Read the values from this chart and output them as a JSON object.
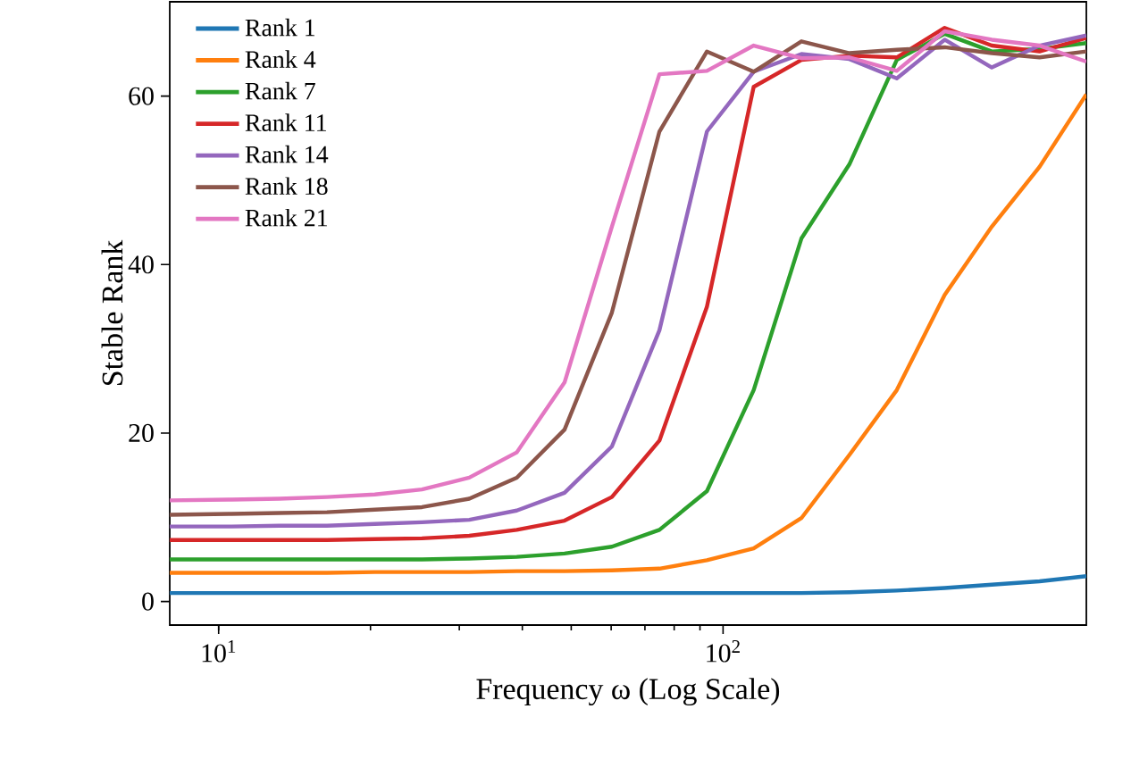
{
  "chart_data": {
    "type": "line",
    "xlabel": "Frequency ω (Log Scale)",
    "ylabel": "Stable Rank",
    "x": [
      8,
      10.6,
      13.2,
      16.4,
      20.4,
      25.3,
      31.4,
      39.0,
      48.5,
      60.2,
      74.8,
      92.9,
      115,
      143,
      178,
      221,
      275,
      341,
      424,
      525
    ],
    "series": [
      {
        "name": "Rank 1",
        "color": "#1f77b4",
        "values": [
          1.0,
          1.0,
          1.0,
          1.0,
          1.0,
          1.0,
          1.0,
          1.0,
          1.0,
          1.0,
          1.0,
          1.0,
          1.0,
          1.0,
          1.1,
          1.3,
          1.6,
          2.0,
          2.4,
          3.0
        ]
      },
      {
        "name": "Rank 4",
        "color": "#ff7f0e",
        "values": [
          3.4,
          3.4,
          3.4,
          3.4,
          3.5,
          3.5,
          3.5,
          3.6,
          3.6,
          3.7,
          3.9,
          4.9,
          6.3,
          9.9,
          17.4,
          25.1,
          36.4,
          44.5,
          51.6,
          60.2
        ]
      },
      {
        "name": "Rank 7",
        "color": "#2ca02c",
        "values": [
          5.0,
          5.0,
          5.0,
          5.0,
          5.0,
          5.0,
          5.1,
          5.3,
          5.7,
          6.5,
          8.5,
          13.1,
          25.1,
          43.1,
          51.9,
          64.3,
          67.4,
          65.3,
          65.6,
          66.3
        ]
      },
      {
        "name": "Rank 11",
        "color": "#d62728",
        "values": [
          7.3,
          7.3,
          7.3,
          7.3,
          7.4,
          7.5,
          7.8,
          8.5,
          9.6,
          12.4,
          19.1,
          35.0,
          61.1,
          64.3,
          64.8,
          64.6,
          68.1,
          66.0,
          65.3,
          66.9
        ]
      },
      {
        "name": "Rank 14",
        "color": "#9467bd",
        "values": [
          8.9,
          8.9,
          9.0,
          9.0,
          9.2,
          9.4,
          9.7,
          10.8,
          12.9,
          18.4,
          32.2,
          55.8,
          62.9,
          65.0,
          64.4,
          62.1,
          66.7,
          63.4,
          66.0,
          67.2
        ]
      },
      {
        "name": "Rank 18",
        "color": "#8c564b",
        "values": [
          10.3,
          10.4,
          10.5,
          10.6,
          10.9,
          11.2,
          12.2,
          14.7,
          20.4,
          34.3,
          55.8,
          65.3,
          62.9,
          66.5,
          65.1,
          65.5,
          65.8,
          65.1,
          64.6,
          65.3
        ]
      },
      {
        "name": "Rank 21",
        "color": "#e377c2",
        "values": [
          12.0,
          12.1,
          12.2,
          12.4,
          12.7,
          13.3,
          14.7,
          17.7,
          26.0,
          44.5,
          62.6,
          63.0,
          66.0,
          64.5,
          64.6,
          63.0,
          67.7,
          66.7,
          66.0,
          64.1
        ]
      }
    ],
    "xlim": [
      8,
      525
    ],
    "ylim": [
      -2.8,
      71.2
    ],
    "xticks": [
      {
        "value": 10,
        "label": "10$^{1}$"
      },
      {
        "value": 100,
        "label": "10$^{2}$"
      }
    ],
    "yticks": [
      0,
      20,
      40,
      60
    ],
    "log": "x",
    "legend": "top left",
    "grid": false,
    "marker": "none",
    "line_style": "solid"
  }
}
